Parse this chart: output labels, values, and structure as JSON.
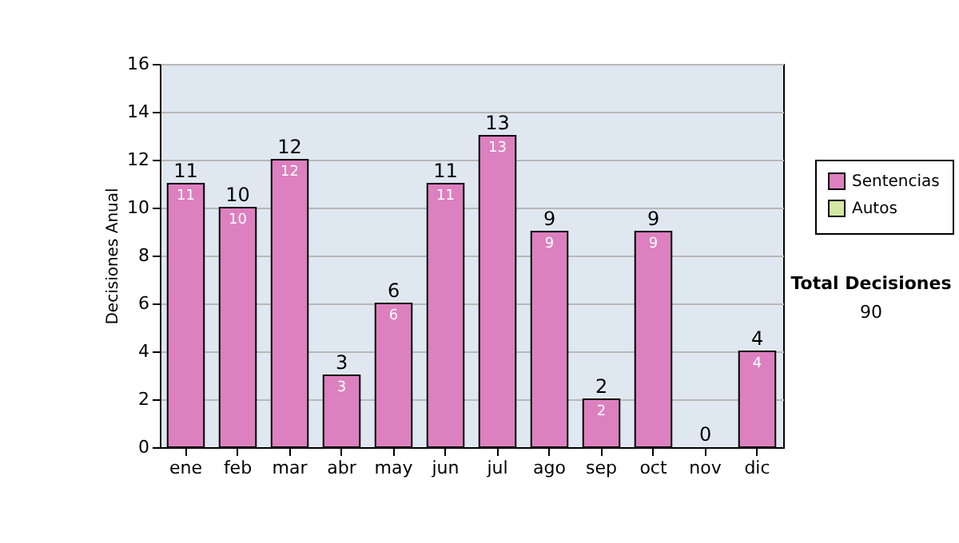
{
  "chart_data": {
    "type": "bar",
    "stacked": true,
    "ylabel": "Decisiones Anual",
    "categories": [
      "ene",
      "feb",
      "mar",
      "abr",
      "may",
      "jun",
      "jul",
      "ago",
      "sep",
      "oct",
      "nov",
      "dic"
    ],
    "series": [
      {
        "name": "Sentencias",
        "color": "#dd80bf",
        "values": [
          11,
          10,
          12,
          3,
          6,
          11,
          13,
          9,
          2,
          9,
          0,
          4
        ],
        "value_labels": [
          "11",
          "10",
          "12",
          "3",
          "6",
          "11",
          "13",
          "9",
          "2",
          "9",
          null,
          "4"
        ]
      },
      {
        "name": "Autos",
        "color": "#d4e8a4",
        "values": [
          0,
          0,
          0,
          0,
          0,
          0,
          0,
          0,
          0,
          0,
          0,
          0
        ]
      }
    ],
    "totals": [
      "11",
      "10",
      "12",
      "3",
      "6",
      "11",
      "13",
      "9",
      "2",
      "9",
      "0",
      "4"
    ],
    "ylim": [
      0,
      16
    ],
    "yticks": [
      0,
      2,
      4,
      6,
      8,
      10,
      12,
      14,
      16
    ],
    "grid": "y",
    "legend": "right",
    "annotations": [
      "Total Decisiones",
      "90"
    ]
  }
}
